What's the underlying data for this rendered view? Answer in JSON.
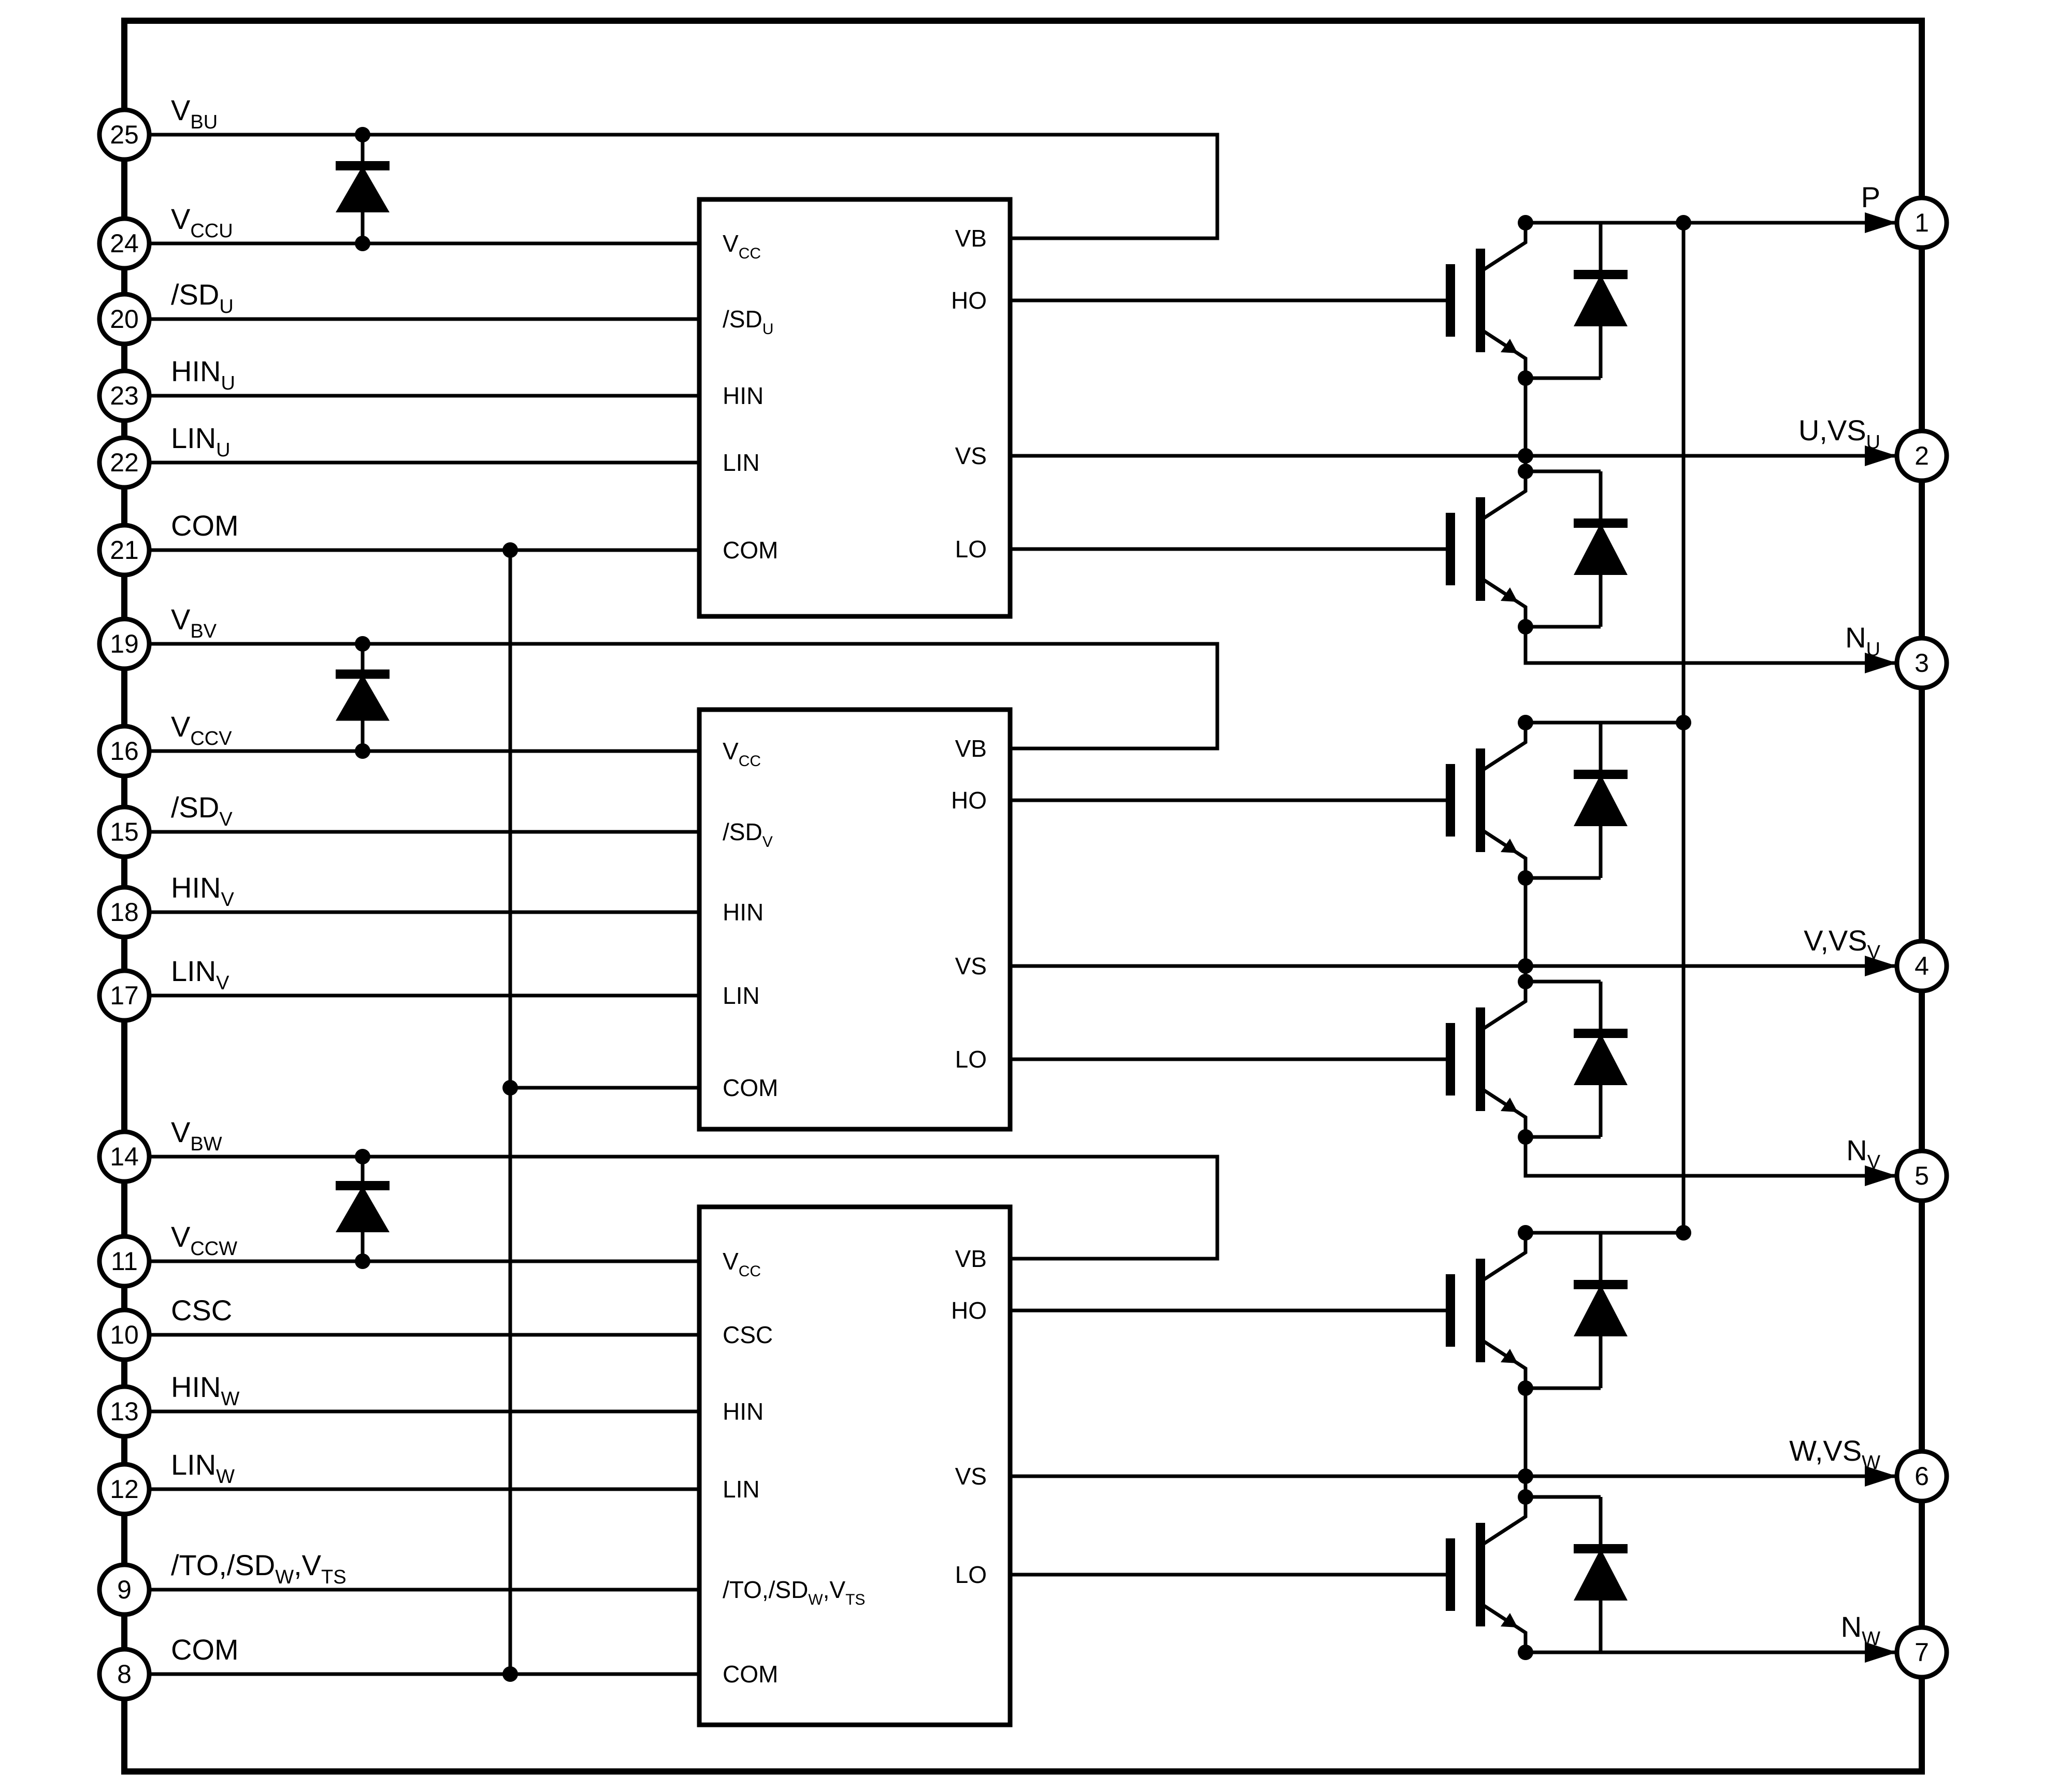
{
  "colors": {
    "line": "#000000",
    "background": "#ffffff"
  },
  "left_pins": [
    {
      "num": "25",
      "label": [
        {
          "t": "V"
        },
        {
          "t": "BU",
          "sub": true
        }
      ]
    },
    {
      "num": "24",
      "label": [
        {
          "t": "V"
        },
        {
          "t": "CCU",
          "sub": true
        }
      ]
    },
    {
      "num": "20",
      "label": [
        {
          "t": "/SD"
        },
        {
          "t": "U",
          "sub": true
        }
      ]
    },
    {
      "num": "23",
      "label": [
        {
          "t": "HIN"
        },
        {
          "t": "U",
          "sub": true
        }
      ]
    },
    {
      "num": "22",
      "label": [
        {
          "t": "LIN"
        },
        {
          "t": "U",
          "sub": true
        }
      ]
    },
    {
      "num": "21",
      "label": [
        {
          "t": "COM"
        }
      ]
    },
    {
      "num": "19",
      "label": [
        {
          "t": "V"
        },
        {
          "t": "BV",
          "sub": true
        }
      ]
    },
    {
      "num": "16",
      "label": [
        {
          "t": "V"
        },
        {
          "t": "CCV",
          "sub": true
        }
      ]
    },
    {
      "num": "15",
      "label": [
        {
          "t": "/SD"
        },
        {
          "t": "V",
          "sub": true
        }
      ]
    },
    {
      "num": "18",
      "label": [
        {
          "t": "HIN"
        },
        {
          "t": "V",
          "sub": true
        }
      ]
    },
    {
      "num": "17",
      "label": [
        {
          "t": "LIN"
        },
        {
          "t": "V",
          "sub": true
        }
      ]
    },
    {
      "num": "14",
      "label": [
        {
          "t": "V"
        },
        {
          "t": "BW",
          "sub": true
        }
      ]
    },
    {
      "num": "11",
      "label": [
        {
          "t": "V"
        },
        {
          "t": "CCW",
          "sub": true
        }
      ]
    },
    {
      "num": "10",
      "label": [
        {
          "t": "CSC"
        }
      ]
    },
    {
      "num": "13",
      "label": [
        {
          "t": "HIN"
        },
        {
          "t": "W",
          "sub": true
        }
      ]
    },
    {
      "num": "12",
      "label": [
        {
          "t": "LIN"
        },
        {
          "t": "W",
          "sub": true
        }
      ]
    },
    {
      "num": "9",
      "label": [
        {
          "t": "/TO,/SD"
        },
        {
          "t": "W",
          "sub": true
        },
        {
          "t": ",V"
        },
        {
          "t": "TS",
          "sub": true
        }
      ]
    },
    {
      "num": "8",
      "label": [
        {
          "t": "COM"
        }
      ]
    }
  ],
  "right_pins": [
    {
      "num": "1",
      "label": [
        {
          "t": "P"
        }
      ]
    },
    {
      "num": "2",
      "label": [
        {
          "t": "U,VS"
        },
        {
          "t": "U",
          "sub": true
        }
      ]
    },
    {
      "num": "3",
      "label": [
        {
          "t": "N"
        },
        {
          "t": "U",
          "sub": true
        }
      ]
    },
    {
      "num": "4",
      "label": [
        {
          "t": "V,VS"
        },
        {
          "t": "V",
          "sub": true
        }
      ]
    },
    {
      "num": "5",
      "label": [
        {
          "t": "N"
        },
        {
          "t": "V",
          "sub": true
        }
      ]
    },
    {
      "num": "6",
      "label": [
        {
          "t": "W,VS"
        },
        {
          "t": "W",
          "sub": true
        }
      ]
    },
    {
      "num": "7",
      "label": [
        {
          "t": "N"
        },
        {
          "t": "W",
          "sub": true
        }
      ]
    }
  ],
  "blocks": [
    {
      "id": "U",
      "left_pins": [
        {
          "label": [
            {
              "t": "V"
            },
            {
              "t": "CC",
              "sub": true
            }
          ]
        },
        {
          "label": [
            {
              "t": "/SD"
            },
            {
              "t": "U",
              "sub": true
            }
          ]
        },
        {
          "label": [
            {
              "t": "HIN"
            }
          ]
        },
        {
          "label": [
            {
              "t": "LIN"
            }
          ]
        },
        {
          "label": [
            {
              "t": "COM"
            }
          ]
        }
      ],
      "right_pins": [
        {
          "label": [
            {
              "t": "VB"
            }
          ]
        },
        {
          "label": [
            {
              "t": "HO"
            }
          ]
        },
        {
          "label": [
            {
              "t": "VS"
            }
          ]
        },
        {
          "label": [
            {
              "t": "LO"
            }
          ]
        }
      ]
    },
    {
      "id": "V",
      "left_pins": [
        {
          "label": [
            {
              "t": "V"
            },
            {
              "t": "CC",
              "sub": true
            }
          ]
        },
        {
          "label": [
            {
              "t": "/SD"
            },
            {
              "t": "V",
              "sub": true
            }
          ]
        },
        {
          "label": [
            {
              "t": "HIN"
            }
          ]
        },
        {
          "label": [
            {
              "t": "LIN"
            }
          ]
        },
        {
          "label": [
            {
              "t": "COM"
            }
          ]
        }
      ],
      "right_pins": [
        {
          "label": [
            {
              "t": "VB"
            }
          ]
        },
        {
          "label": [
            {
              "t": "HO"
            }
          ]
        },
        {
          "label": [
            {
              "t": "VS"
            }
          ]
        },
        {
          "label": [
            {
              "t": "LO"
            }
          ]
        }
      ]
    },
    {
      "id": "W",
      "left_pins": [
        {
          "label": [
            {
              "t": "V"
            },
            {
              "t": "CC",
              "sub": true
            }
          ]
        },
        {
          "label": [
            {
              "t": "CSC"
            }
          ]
        },
        {
          "label": [
            {
              "t": "HIN"
            }
          ]
        },
        {
          "label": [
            {
              "t": "LIN"
            }
          ]
        },
        {
          "label": [
            {
              "t": "/TO,/SD"
            },
            {
              "t": "W",
              "sub": true
            },
            {
              "t": ",V"
            },
            {
              "t": "TS",
              "sub": true
            }
          ]
        },
        {
          "label": [
            {
              "t": "COM"
            }
          ]
        }
      ],
      "right_pins": [
        {
          "label": [
            {
              "t": "VB"
            }
          ]
        },
        {
          "label": [
            {
              "t": "HO"
            }
          ]
        },
        {
          "label": [
            {
              "t": "VS"
            }
          ]
        },
        {
          "label": [
            {
              "t": "LO"
            }
          ]
        }
      ]
    }
  ]
}
